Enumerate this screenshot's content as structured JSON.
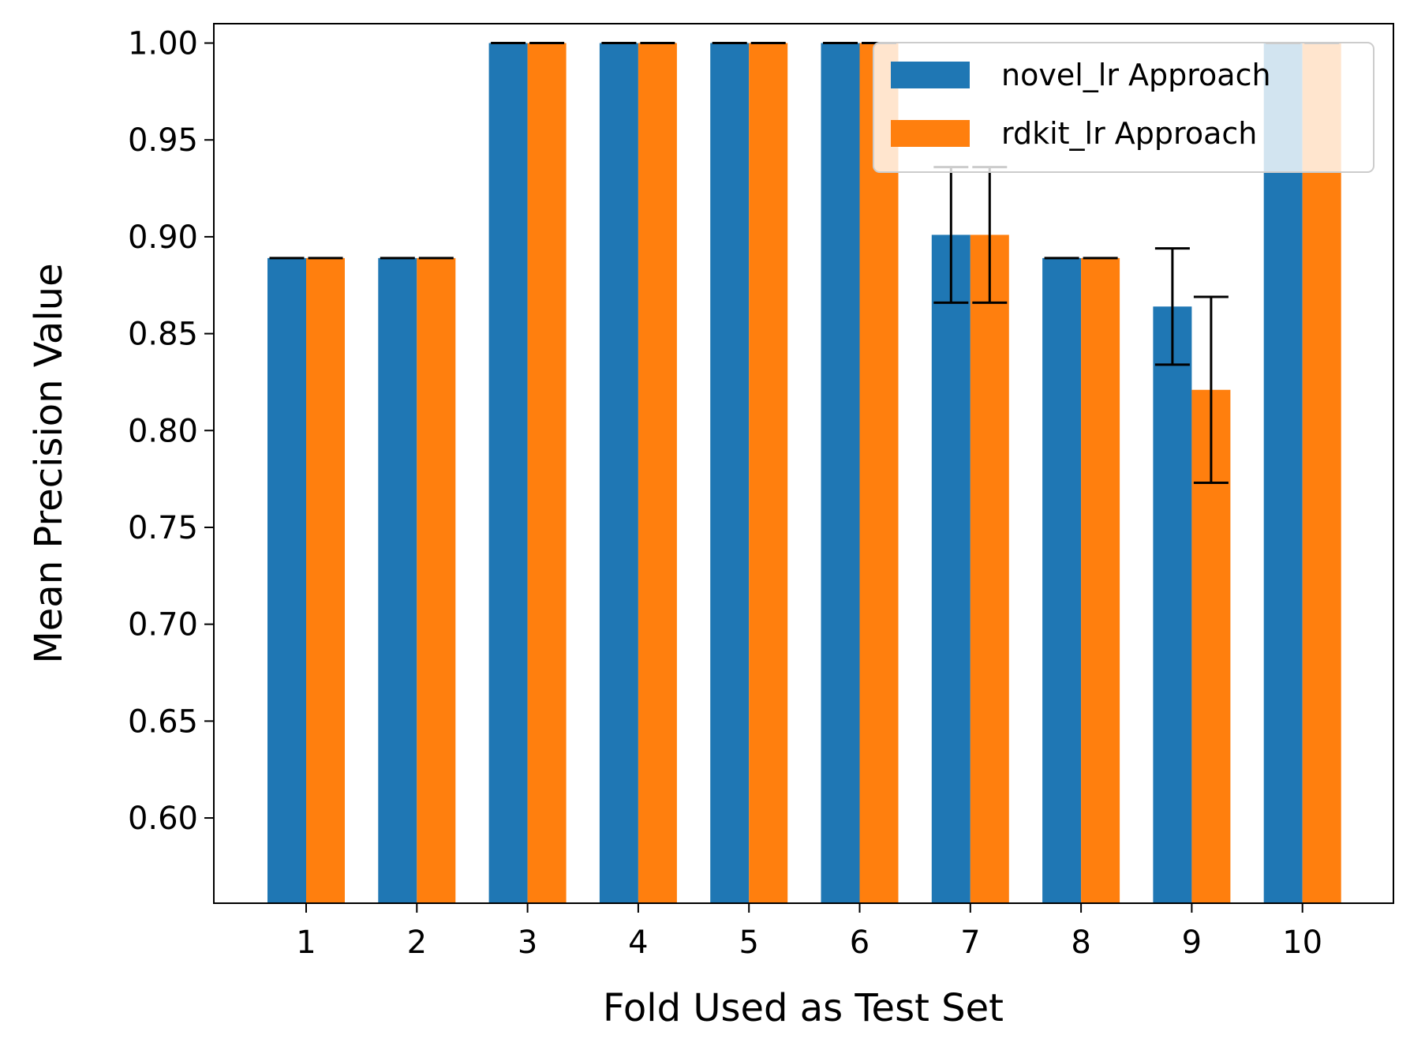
{
  "chart_data": {
    "type": "bar",
    "title": "",
    "xlabel": "Fold Used as Test Set",
    "ylabel": "Mean Precision Value",
    "categories": [
      "1",
      "2",
      "3",
      "4",
      "5",
      "6",
      "7",
      "8",
      "9",
      "10"
    ],
    "ylim": [
      0.556,
      1.01
    ],
    "yticks": [
      "0.60",
      "0.65",
      "0.70",
      "0.75",
      "0.80",
      "0.85",
      "0.90",
      "0.95",
      "1.00"
    ],
    "grid": false,
    "legend_position": "top-right",
    "series": [
      {
        "name": "novel_lr Approach",
        "color": "#1f77b4",
        "values": [
          0.889,
          0.889,
          1.0,
          1.0,
          1.0,
          1.0,
          0.901,
          0.889,
          0.864,
          1.0
        ],
        "errors": [
          0,
          0,
          0,
          0,
          0,
          0,
          0.035,
          0,
          0.03,
          0
        ]
      },
      {
        "name": "rdkit_lr Approach",
        "color": "#ff7f0e",
        "values": [
          0.889,
          0.889,
          1.0,
          1.0,
          1.0,
          1.0,
          0.901,
          0.889,
          0.821,
          1.0
        ],
        "errors": [
          0,
          0,
          0,
          0,
          0,
          0,
          0.035,
          0,
          0.048,
          0
        ]
      }
    ]
  }
}
